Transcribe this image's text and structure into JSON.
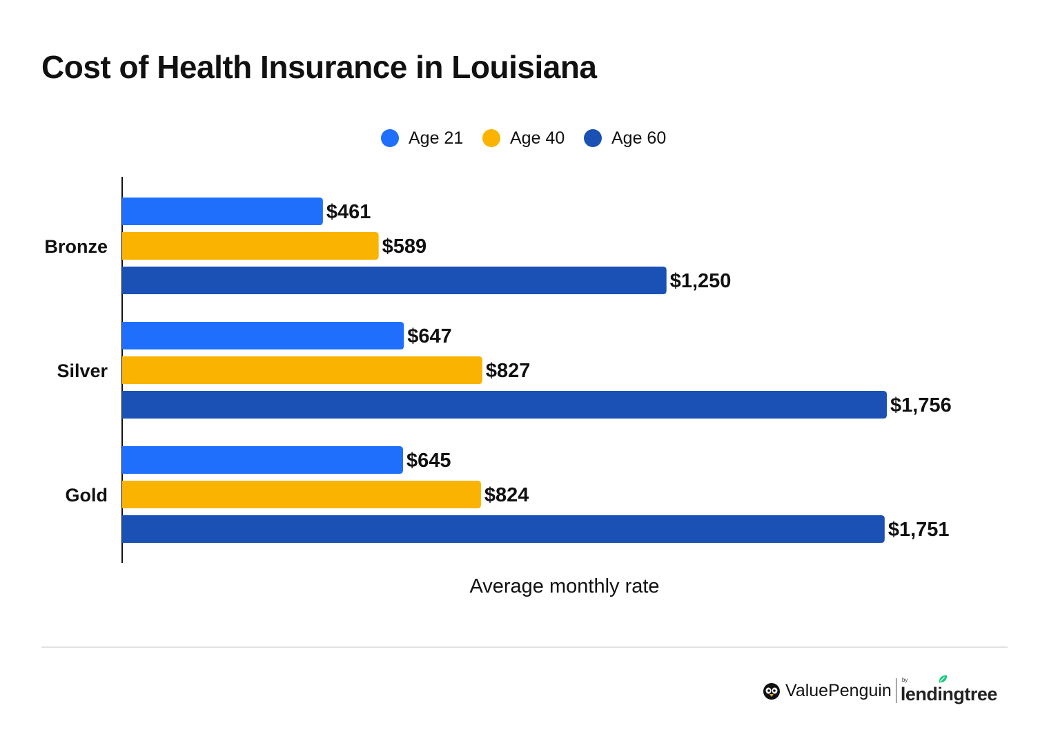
{
  "chart_data": {
    "type": "bar",
    "orientation": "horizontal",
    "title": "Cost of Health Insurance in Louisiana",
    "xlabel": "Average monthly rate",
    "ylabel": "",
    "categories": [
      "Bronze",
      "Silver",
      "Gold"
    ],
    "series": [
      {
        "name": "Age 21",
        "color": "#1f6ffc",
        "values": [
          461,
          647,
          645
        ],
        "labels": [
          "$461",
          "$647",
          "$645"
        ]
      },
      {
        "name": "Age 40",
        "color": "#f9b300",
        "values": [
          589,
          827,
          824
        ],
        "labels": [
          "$589",
          "$827",
          "$824"
        ]
      },
      {
        "name": "Age 60",
        "color": "#1b51b5",
        "values": [
          1250,
          1756,
          1751
        ],
        "labels": [
          "$1,250",
          "$1,756",
          "$1,751"
        ]
      }
    ],
    "xlim": [
      0,
      1756
    ],
    "grid": false,
    "legend_position": "top-center"
  },
  "branding": {
    "valuepenguin": "ValuePenguin",
    "by": "by",
    "lendingtree": "lendingtree"
  }
}
